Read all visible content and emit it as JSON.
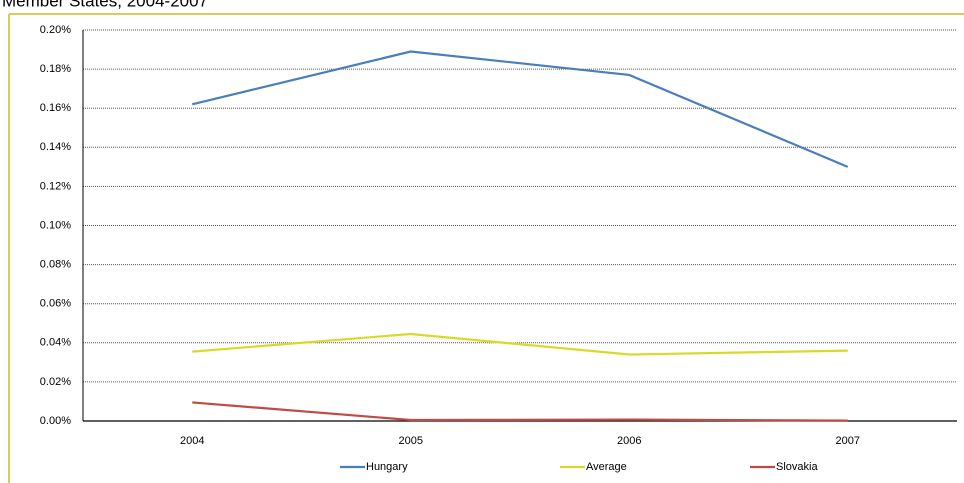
{
  "chart_data": {
    "type": "line",
    "title": "Member States, 2004-2007",
    "categories": [
      "2004",
      "2005",
      "2006",
      "2007"
    ],
    "series": [
      {
        "name": "Hungary",
        "color": "#4a7ebb",
        "values": [
          0.162,
          0.189,
          0.177,
          0.13
        ]
      },
      {
        "name": "Average",
        "color": "#d9d92a",
        "values": [
          0.0355,
          0.0445,
          0.034,
          0.036
        ]
      },
      {
        "name": "Slovakia",
        "color": "#be4b48",
        "values": [
          0.0095,
          0.0005,
          0.0007,
          0.0002
        ]
      }
    ],
    "ylim": [
      0,
      0.2
    ],
    "yticks": [
      {
        "value": 0,
        "label": "0.00%"
      },
      {
        "value": 0.02,
        "label": "0.02%"
      },
      {
        "value": 0.04,
        "label": "0.04%"
      },
      {
        "value": 0.06,
        "label": "0.06%"
      },
      {
        "value": 0.08,
        "label": "0.08%"
      },
      {
        "value": 0.1,
        "label": "0.10%"
      },
      {
        "value": 0.12,
        "label": "0.12%"
      },
      {
        "value": 0.14,
        "label": "0.14%"
      },
      {
        "value": 0.16,
        "label": "0.16%"
      },
      {
        "value": 0.18,
        "label": "0.18%"
      },
      {
        "value": 0.2,
        "label": "0.20%"
      }
    ],
    "grid": true,
    "legend": "bottom"
  }
}
